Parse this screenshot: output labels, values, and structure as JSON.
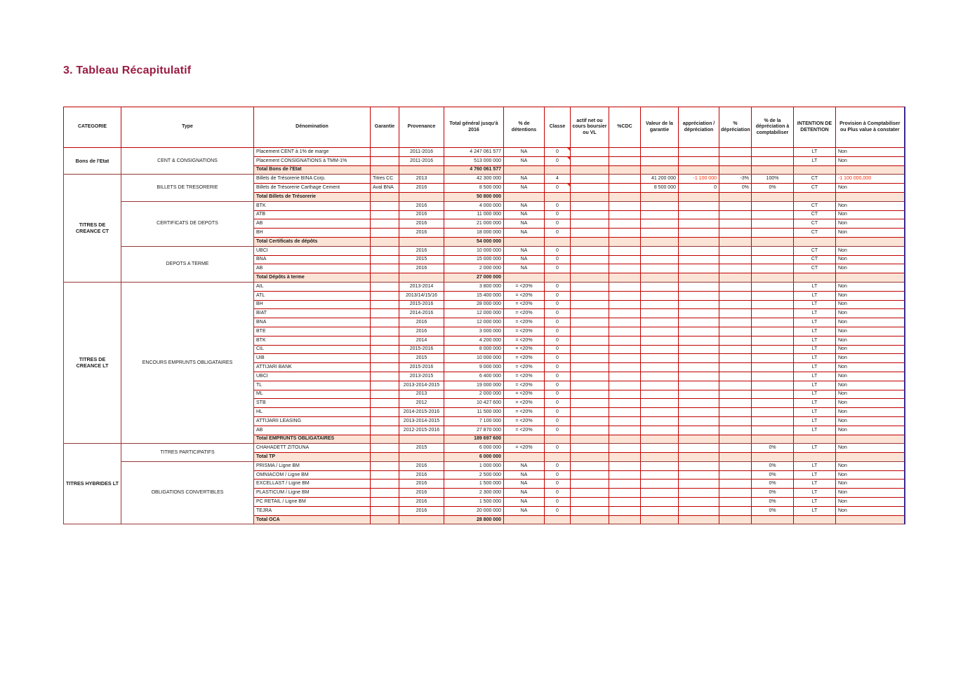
{
  "page_title": "3. Tableau Récapitulatif",
  "colors": {
    "title_accent": "#9A1B41",
    "grid_red": "#C00000",
    "frame_maroon": "#953735",
    "outer_right_purple": "#3A2A8C",
    "total_row_bg": "#FBE3D5",
    "negative_red": "#FF2A00"
  },
  "table": {
    "columns": [
      {
        "id": "cat",
        "label": "CATEGORIE"
      },
      {
        "id": "type",
        "label": "Type"
      },
      {
        "id": "denom",
        "label": "Dénomination"
      },
      {
        "id": "gar",
        "label": "Garantie"
      },
      {
        "id": "prov",
        "label": "Provenance"
      },
      {
        "id": "total",
        "label": "Total général jusqu'à 2016"
      },
      {
        "id": "det",
        "label": "% de détentions"
      },
      {
        "id": "classe",
        "label": "Classe"
      },
      {
        "id": "actif",
        "label": "actif net ou cours boursier ou VL"
      },
      {
        "id": "cdc",
        "label": "%CDC"
      },
      {
        "id": "valg",
        "label": "Valeur de la garantie"
      },
      {
        "id": "appr",
        "label": "appréciation / dépréciation"
      },
      {
        "id": "deppct",
        "label": "% dépréciation"
      },
      {
        "id": "depc",
        "label": "% de la dépréciation à comptabiliser"
      },
      {
        "id": "int",
        "label": "INTENTION DE DETENTION"
      },
      {
        "id": "prv",
        "label": "Provision à Comptabiliser ou Plus value à constater"
      }
    ],
    "groups": [
      {
        "category": "Bons de l'Etat",
        "types": [
          {
            "label": "CENT & CONSIGNATIONS",
            "rows": [
              {
                "d": "Placement CENT à 1% de marge",
                "g": "",
                "p": "2011-2016",
                "t": "4 247 061 577",
                "det": "NA",
                "cl": "0",
                "cmark": true,
                "int": "LT",
                "prv": "Non"
              },
              {
                "d": "Placement CONSIGNATIONS à TMM-1%",
                "g": "",
                "p": "2011-2016",
                "t": "513 000 000",
                "det": "NA",
                "cl": "0",
                "cmark": true,
                "int": "LT",
                "prv": "Non"
              }
            ],
            "total": {
              "label": "Total Bons de l'Etat",
              "value": "4 760 061 577"
            }
          }
        ]
      },
      {
        "category": "TITRES DE CREANCE CT",
        "types": [
          {
            "label": "BILLETS DE TRESORERIE",
            "rows": [
              {
                "d": "Billets de Trésorerie BINA Corp.",
                "g": "Titres CC",
                "p": "2013",
                "t": "42 300 000",
                "det": "NA",
                "cl": "4",
                "vg": "41 200 000",
                "ap": "-1 100 000",
                "dp": "-3%",
                "dc": "100%",
                "int": "CT",
                "prv": "-1 100 000,000",
                "red": [
                  "ap",
                  "prv"
                ]
              },
              {
                "d": "Billets de Trésorerie  Carthage Cement",
                "g": "Aval BNA",
                "p": "2016",
                "t": "8 500 000",
                "det": "NA",
                "cl": "0",
                "cmark": true,
                "vg": "8 500 000",
                "ap": "0",
                "dp": "0%",
                "dc": "0%",
                "int": "CT",
                "prv": "Non"
              }
            ],
            "total": {
              "label": "Total Billets de Trésorerie",
              "value": "50 800 000"
            }
          },
          {
            "label": "CERTIFICATS DE DEPOTS",
            "rows": [
              {
                "d": "BTK",
                "g": "",
                "p": "2016",
                "t": "4 000 000",
                "det": "NA",
                "cl": "0",
                "int": "CT",
                "prv": "Non"
              },
              {
                "d": "ATB",
                "g": "",
                "p": "2016",
                "t": "11 000 000",
                "det": "NA",
                "cl": "0",
                "int": "CT",
                "prv": "Non"
              },
              {
                "d": "AB",
                "g": "",
                "p": "2016",
                "t": "21 000 000",
                "det": "NA",
                "cl": "0",
                "int": "CT",
                "prv": "Non"
              },
              {
                "d": "BH",
                "g": "",
                "p": "2016",
                "t": "18 000 000",
                "det": "NA",
                "cl": "0",
                "int": "CT",
                "prv": "Non"
              }
            ],
            "total": {
              "label": "Total Certificats de dépôts",
              "value": "54 000 000"
            }
          },
          {
            "label": "DEPOTS A TERME",
            "rows": [
              {
                "d": "UBCI",
                "g": "",
                "p": "2016",
                "t": "10 000 000",
                "det": "NA",
                "cl": "0",
                "int": "CT",
                "prv": "Non"
              },
              {
                "d": "BNA",
                "g": "",
                "p": "2015",
                "t": "15 000 000",
                "det": "NA",
                "cl": "0",
                "int": "CT",
                "prv": "Non"
              },
              {
                "d": "AB",
                "g": "",
                "p": "2016",
                "t": "2 000 000",
                "det": "NA",
                "cl": "0",
                "int": "CT",
                "prv": "Non"
              }
            ],
            "total": {
              "label": "Total Dépôts à terme",
              "value": "27 000 000"
            }
          }
        ]
      },
      {
        "category": "TITRES DE CREANCE LT",
        "types": [
          {
            "label": "ENCOURS EMPRUNTS OBLIGATAIRES",
            "rows": [
              {
                "d": "AIL",
                "g": "",
                "p": "2013-2014",
                "t": "3 800 000",
                "det": "= <20%",
                "cl": "0",
                "int": "LT",
                "prv": "Non"
              },
              {
                "d": "ATL",
                "g": "",
                "p": "2013/14/15/16",
                "t": "15 400 000",
                "det": "= <20%",
                "cl": "0",
                "int": "LT",
                "prv": "Non"
              },
              {
                "d": "BH",
                "g": "",
                "p": "2015-2016",
                "t": "28 000 000",
                "det": "= <20%",
                "cl": "0",
                "int": "LT",
                "prv": "Non"
              },
              {
                "d": "BIAT",
                "g": "",
                "p": "2014-2016",
                "t": "12 000 000",
                "det": "= <20%",
                "cl": "0",
                "int": "LT",
                "prv": "Non"
              },
              {
                "d": "BNA",
                "g": "",
                "p": "2016",
                "t": "12 000 000",
                "det": "= <20%",
                "cl": "0",
                "int": "LT",
                "prv": "Non"
              },
              {
                "d": "BTE",
                "g": "",
                "p": "2016",
                "t": "3 000 000",
                "det": "= <20%",
                "cl": "0",
                "int": "LT",
                "prv": "Non"
              },
              {
                "d": "BTK",
                "g": "",
                "p": "2014",
                "t": "4 200 000",
                "det": "= <20%",
                "cl": "0",
                "int": "LT",
                "prv": "Non"
              },
              {
                "d": "CIL",
                "g": "",
                "p": "2015-2016",
                "t": "8 000 000",
                "det": "= <20%",
                "cl": "0",
                "int": "LT",
                "prv": "Non"
              },
              {
                "d": "UIB",
                "g": "",
                "p": "2015",
                "t": "10 000 000",
                "det": "= <20%",
                "cl": "0",
                "int": "LT",
                "prv": "Non"
              },
              {
                "d": "ATTIJARI BANK",
                "g": "",
                "p": "2015-2016",
                "t": "9 000 000",
                "det": "= <20%",
                "cl": "0",
                "int": "LT",
                "prv": "Non"
              },
              {
                "d": "UBCI",
                "g": "",
                "p": "2013-2015",
                "t": "6 400 000",
                "det": "= <20%",
                "cl": "0",
                "int": "LT",
                "prv": "Non"
              },
              {
                "d": "TL",
                "g": "",
                "p": "2013-2014-2015",
                "t": "19 000 000",
                "det": "= <20%",
                "cl": "0",
                "int": "LT",
                "prv": "Non"
              },
              {
                "d": "ML",
                "g": "",
                "p": "2013",
                "t": "2 000 000",
                "det": "= <20%",
                "cl": "0",
                "int": "LT",
                "prv": "Non"
              },
              {
                "d": "STB",
                "g": "",
                "p": "2012",
                "t": "10 427 600",
                "det": "= <20%",
                "cl": "0",
                "int": "LT",
                "prv": "Non"
              },
              {
                "d": "HL",
                "g": "",
                "p": "2014-2015-2016",
                "t": "11 500 000",
                "det": "= <20%",
                "cl": "0",
                "int": "LT",
                "prv": "Non"
              },
              {
                "d": "ATTIJARII LEASING",
                "g": "",
                "p": "2013-2014-2015",
                "t": "7 100 000",
                "det": "= <20%",
                "cl": "0",
                "int": "LT",
                "prv": "Non"
              },
              {
                "d": "AB",
                "g": "",
                "p": "2012-2015-2016",
                "t": "27 870 000",
                "det": "= <20%",
                "cl": "0",
                "int": "LT",
                "prv": "Non"
              }
            ],
            "total": {
              "label": "Total EMPRUNTS OBLIGATAIRES",
              "value": "189 697 600"
            }
          }
        ]
      },
      {
        "category": "TITRES HYBRIDES LT",
        "types": [
          {
            "label": "TITRES PARTICIPATIFS",
            "rows": [
              {
                "d": "CHAHADETT ZITOUNA",
                "g": "",
                "p": "2015",
                "t": "6 000 000",
                "det": "= <20%",
                "cl": "0",
                "dc": "0%",
                "int": "LT",
                "prv": "Non"
              }
            ],
            "total": {
              "label": "Total TP",
              "value": "6 000 000"
            }
          },
          {
            "label": "OBLIGATIONS CONVERTIBLES",
            "rows": [
              {
                "d": "PRISMA / Ligne BM",
                "g": "",
                "p": "2016",
                "t": "1 000 000",
                "det": "NA",
                "cl": "0",
                "dc": "0%",
                "int": "LT",
                "prv": "Non"
              },
              {
                "d": "OMNIACOM / Ligne BM",
                "g": "",
                "p": "2016",
                "t": "2 500 000",
                "det": "NA",
                "cl": "0",
                "dc": "0%",
                "int": "LT",
                "prv": "Non"
              },
              {
                "d": "EXCELLAST / Ligne BM",
                "g": "",
                "p": "2016",
                "t": "1 500 000",
                "det": "NA",
                "cl": "0",
                "dc": "0%",
                "int": "LT",
                "prv": "Non"
              },
              {
                "d": "PLASTICUM / Ligne BM",
                "g": "",
                "p": "2016",
                "t": "2 300 000",
                "det": "NA",
                "cl": "0",
                "dc": "0%",
                "int": "LT",
                "prv": "Non"
              },
              {
                "d": "PC RETAIL / Ligne BM",
                "g": "",
                "p": "2016",
                "t": "1 500 000",
                "det": "NA",
                "cl": "0",
                "dc": "0%",
                "int": "LT",
                "prv": "Non"
              },
              {
                "d": "TEJRA",
                "g": "",
                "p": "2016",
                "t": "20 000 000",
                "det": "NA",
                "cl": "0",
                "dc": "0%",
                "int": "LT",
                "prv": "Non"
              }
            ],
            "total": {
              "label": "Total OCA",
              "value": "28 800 000"
            }
          }
        ]
      }
    ]
  }
}
